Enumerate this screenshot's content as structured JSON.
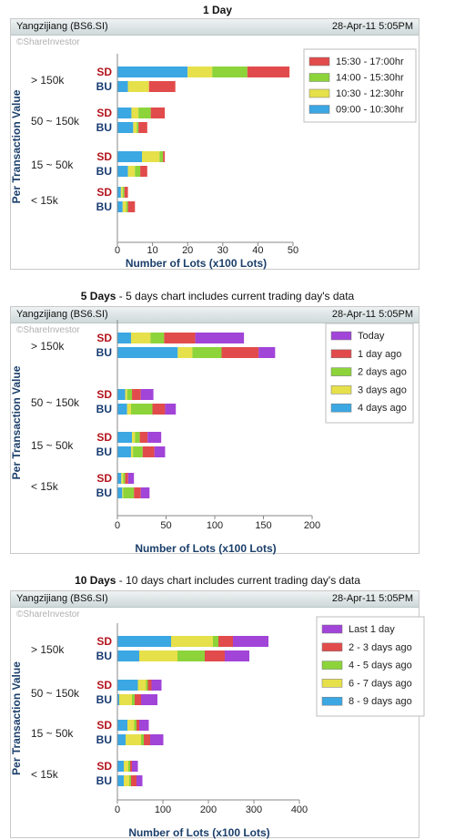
{
  "chart_data": [
    {
      "type": "bar",
      "title_bold": "1 Day",
      "title_rest": "",
      "stock": "Yangzijiang (BS6.SI)",
      "date": "28-Apr-11 5:05PM",
      "copyright": "©ShareInvestor",
      "ylabel": "Per Transaction Value",
      "xlabel": "Number of Lots (x100 Lots)",
      "xlim": [
        0,
        50
      ],
      "xticks": [
        0,
        10,
        20,
        30,
        40,
        50
      ],
      "categories": [
        "> 150k",
        "50 ~ 150k",
        "15 ~ 50k",
        "< 15k"
      ],
      "row_labels": [
        "SD",
        "BU"
      ],
      "series": [
        {
          "name": "09:00 - 10:30hr",
          "color": "#3ba7e3",
          "sd": [
            20,
            4,
            7,
            1
          ],
          "bu": [
            3,
            4.5,
            3,
            1.5
          ]
        },
        {
          "name": "10:30 - 12:30hr",
          "color": "#e6e04a",
          "sd": [
            7,
            2,
            5,
            0.5
          ],
          "bu": [
            6,
            1,
            2,
            1
          ]
        },
        {
          "name": "14:00 - 15:30hr",
          "color": "#8cd43a",
          "sd": [
            10,
            3.5,
            1,
            0.5
          ],
          "bu": [
            0,
            0.5,
            1.5,
            0.5
          ]
        },
        {
          "name": "15:30 - 17:00hr",
          "color": "#e24b4b",
          "sd": [
            12,
            4,
            0.5,
            1
          ],
          "bu": [
            7.5,
            2.5,
            2,
            2
          ]
        }
      ]
    },
    {
      "type": "bar",
      "title_bold": "5 Days",
      "title_rest": " - 5 days chart includes current trading day's data",
      "stock": "Yangzijiang (BS6.SI)",
      "date": "28-Apr-11 5:05PM",
      "copyright": "©ShareInvestor",
      "ylabel": "Per Transaction Value",
      "xlabel": "Number of Lots (x100 Lots)",
      "xlim": [
        0,
        200
      ],
      "xticks": [
        0,
        50,
        100,
        150,
        200
      ],
      "categories": [
        "> 150k",
        "50 ~ 150k",
        "15 ~ 50k",
        "< 15k"
      ],
      "row_labels": [
        "SD",
        "BU"
      ],
      "series": [
        {
          "name": "4 days ago",
          "color": "#3ba7e3",
          "sd": [
            14,
            8,
            15,
            4
          ],
          "bu": [
            62,
            10,
            14,
            5
          ]
        },
        {
          "name": "3 days ago",
          "color": "#e6e04a",
          "sd": [
            20,
            2,
            3,
            2
          ],
          "bu": [
            15,
            4,
            2,
            1
          ]
        },
        {
          "name": "2 days ago",
          "color": "#8cd43a",
          "sd": [
            14,
            5,
            5,
            2
          ],
          "bu": [
            30,
            22,
            10,
            11
          ]
        },
        {
          "name": "1 day ago",
          "color": "#e24b4b",
          "sd": [
            32,
            9,
            8,
            3
          ],
          "bu": [
            38,
            13,
            12,
            7
          ]
        },
        {
          "name": "Today",
          "color": "#a144d8",
          "sd": [
            50,
            13,
            14,
            6
          ],
          "bu": [
            17,
            11,
            11,
            9
          ]
        }
      ]
    },
    {
      "type": "bar",
      "title_bold": "10 Days",
      "title_rest": " - 10 days chart includes current trading day's data",
      "stock": "Yangzijiang (BS6.SI)",
      "date": "28-Apr-11 5:05PM",
      "copyright": "©ShareInvestor",
      "ylabel": "Per Transaction Value",
      "xlabel": "Number of Lots (x100 Lots)",
      "xlim": [
        0,
        400
      ],
      "xticks": [
        0,
        100,
        200,
        300,
        400
      ],
      "categories": [
        "> 150k",
        "50 ~ 150k",
        "15 ~ 50k",
        "< 15k"
      ],
      "row_labels": [
        "SD",
        "BU"
      ],
      "series": [
        {
          "name": "8 - 9 days ago",
          "color": "#3ba7e3",
          "sd": [
            118,
            45,
            22,
            14
          ],
          "bu": [
            48,
            4,
            18,
            14
          ]
        },
        {
          "name": "6 - 7 days ago",
          "color": "#e6e04a",
          "sd": [
            92,
            18,
            15,
            10
          ],
          "bu": [
            84,
            28,
            34,
            12
          ]
        },
        {
          "name": "4 - 5 days ago",
          "color": "#8cd43a",
          "sd": [
            12,
            4,
            5,
            4
          ],
          "bu": [
            60,
            6,
            6,
            4
          ]
        },
        {
          "name": "2 - 3 days ago",
          "color": "#e24b4b",
          "sd": [
            32,
            8,
            6,
            4
          ],
          "bu": [
            44,
            14,
            14,
            12
          ]
        },
        {
          "name": "Last 1 day",
          "color": "#a144d8",
          "sd": [
            78,
            22,
            21,
            13
          ],
          "bu": [
            54,
            36,
            29,
            13
          ]
        }
      ]
    }
  ]
}
